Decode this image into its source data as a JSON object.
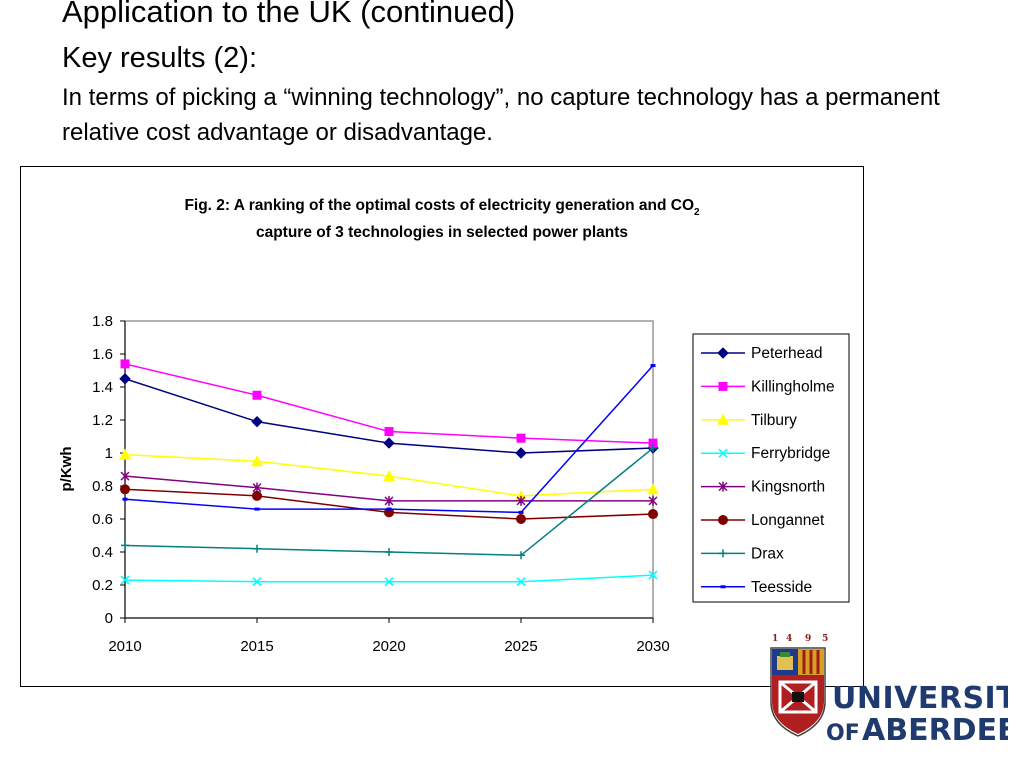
{
  "slide": {
    "heading": "Application to the UK (continued)",
    "subheading": "Key results (2):",
    "description": "In terms of picking a “winning technology”, no capture technology has a permanent relative cost advantage or disadvantage."
  },
  "logo": {
    "year_digits": [
      "1",
      "4",
      "9",
      "5"
    ],
    "line1": "UNIVERSITY",
    "line2_small": "OF",
    "line2_big": "ABERDEEN",
    "text_color": "#1f3a6e"
  },
  "chart_data": {
    "type": "line",
    "title_line1": "Fig. 2: A ranking of the optimal costs of electricity generation and CO",
    "title_subscript": "2",
    "title_line2": "capture of 3 technologies in selected power plants",
    "xlabel": "",
    "ylabel": "p/Kwh",
    "x": [
      "2010",
      "2015",
      "2020",
      "2025",
      "2030"
    ],
    "ylim": [
      0,
      1.8
    ],
    "yticks": [
      "0",
      "0.2",
      "0.4",
      "0.6",
      "0.8",
      "1",
      "1.2",
      "1.4",
      "1.6",
      "1.8"
    ],
    "grid": false,
    "legend_position": "right",
    "series": [
      {
        "name": "Peterhead",
        "color": "#000080",
        "marker": "diamond",
        "values": [
          1.45,
          1.19,
          1.06,
          1.0,
          1.03
        ]
      },
      {
        "name": "Killingholme",
        "color": "#ff00ff",
        "marker": "square",
        "values": [
          1.54,
          1.35,
          1.13,
          1.09,
          1.06
        ]
      },
      {
        "name": "Tilbury",
        "color": "#ffff00",
        "marker": "triangle",
        "values": [
          0.99,
          0.95,
          0.86,
          0.74,
          0.78
        ]
      },
      {
        "name": "Ferrybridge",
        "color": "#00ffff",
        "marker": "x",
        "values": [
          0.23,
          0.22,
          0.22,
          0.22,
          0.26
        ]
      },
      {
        "name": "Kingsnorth",
        "color": "#800080",
        "marker": "star",
        "values": [
          0.86,
          0.79,
          0.71,
          0.71,
          0.71
        ]
      },
      {
        "name": "Longannet",
        "color": "#800000",
        "marker": "circle",
        "values": [
          0.78,
          0.74,
          0.64,
          0.6,
          0.63
        ]
      },
      {
        "name": "Drax",
        "color": "#008080",
        "marker": "plus",
        "values": [
          0.44,
          0.42,
          0.4,
          0.38,
          1.03
        ]
      },
      {
        "name": "Teesside",
        "color": "#0000ff",
        "marker": "dash",
        "values": [
          0.72,
          0.66,
          0.66,
          0.64,
          1.53
        ]
      }
    ]
  }
}
